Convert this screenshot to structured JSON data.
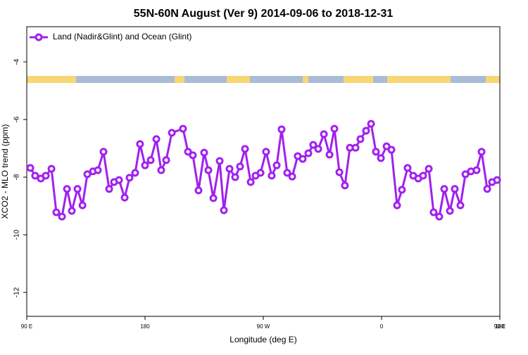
{
  "chart_data": {
    "type": "line",
    "title": "55N-60N August (Ver 9)   2014-09-06 to 2018-12-31",
    "x_label": "Longitude (deg E)",
    "y_label": "XCO2 - MLO trend (ppm)",
    "legend_position": "top-left",
    "xlim": [
      90,
      450
    ],
    "ylim": [
      -12.83,
      -2.78
    ],
    "xticks": [
      {
        "value": 90,
        "label": "90 E"
      },
      {
        "value": 180,
        "label": "180"
      },
      {
        "value": 270,
        "label": "90 W"
      },
      {
        "value": 360,
        "label": "0"
      },
      {
        "value": 450,
        "label": "90 E"
      },
      {
        "value": 540,
        "label": "180"
      }
    ],
    "yticks": [
      -12,
      -10,
      -8,
      -6,
      -4
    ],
    "x": [
      92.7,
      96.4,
      100.7,
      104.5,
      108.8,
      112.5,
      116.8,
      120.6,
      124.3,
      128.6,
      132.4,
      136.1,
      140.4,
      144.1,
      148.4,
      152.7,
      156.4,
      160.2,
      164.5,
      168.2,
      172.5,
      176.2,
      180,
      184.3,
      188.6,
      192.3,
      196.1,
      200.4,
      208.9,
      212.7,
      216.4,
      220.7,
      225,
      228.2,
      232,
      236.8,
      240,
      244.3,
      248.6,
      252.3,
      256.1,
      260.4,
      264.1,
      267.9,
      272.1,
      276.4,
      280.2,
      283.9,
      288.2,
      292,
      296.2,
      300,
      304.3,
      308,
      311.8,
      316.1,
      320.4,
      324.1,
      327.9,
      332.1,
      335.9,
      340.2,
      343.9,
      348.2,
      352,
      355.7,
      359.5,
      363.8,
      367.5,
      371.8,
      375.5,
      379.8,
      384.1,
      387.9,
      391.6,
      395.9,
      399.6,
      403.9,
      407.7,
      412,
      415.7,
      420,
      423.8,
      428,
      432.3,
      436.1,
      440.4,
      444.1,
      447.9
    ],
    "series": [
      {
        "name": "Land (Nadir&Glint) and Ocean (Glint)",
        "color": "#a020f0",
        "values": [
          -7.68,
          -7.95,
          -8.05,
          -7.95,
          -7.71,
          -9.22,
          -9.37,
          -8.41,
          -9.17,
          -8.41,
          -8.98,
          -7.9,
          -7.8,
          -7.76,
          -7.12,
          -8.41,
          -8.17,
          -8.1,
          -8.71,
          -8.02,
          -7.85,
          -6.85,
          -7.59,
          -7.41,
          -6.68,
          -7.76,
          -7.41,
          -6.46,
          -6.32,
          -7.12,
          -7.24,
          -8.46,
          -7.15,
          -7.76,
          -8.73,
          -7.44,
          -9.15,
          -7.71,
          -8.0,
          -7.63,
          -7.02,
          -8.17,
          -7.95,
          -7.85,
          -7.12,
          -7.95,
          -7.59,
          -6.34,
          -7.85,
          -7.98,
          -7.27,
          -7.37,
          -7.17,
          -6.88,
          -7.02,
          -6.51,
          -7.22,
          -6.32,
          -7.83,
          -8.29,
          -6.98,
          -6.98,
          -6.68,
          -6.39,
          -6.15,
          -7.12,
          -7.34,
          -6.93,
          -7.05,
          -8.98,
          -8.44,
          -7.68,
          -7.95,
          -8.05,
          -7.95,
          -7.71,
          -9.22,
          -9.37,
          -8.41,
          -9.17,
          -8.41,
          -8.98,
          -7.9,
          -7.8,
          -7.76,
          -7.12,
          -8.41,
          -8.17,
          -8.1
        ]
      }
    ]
  }
}
